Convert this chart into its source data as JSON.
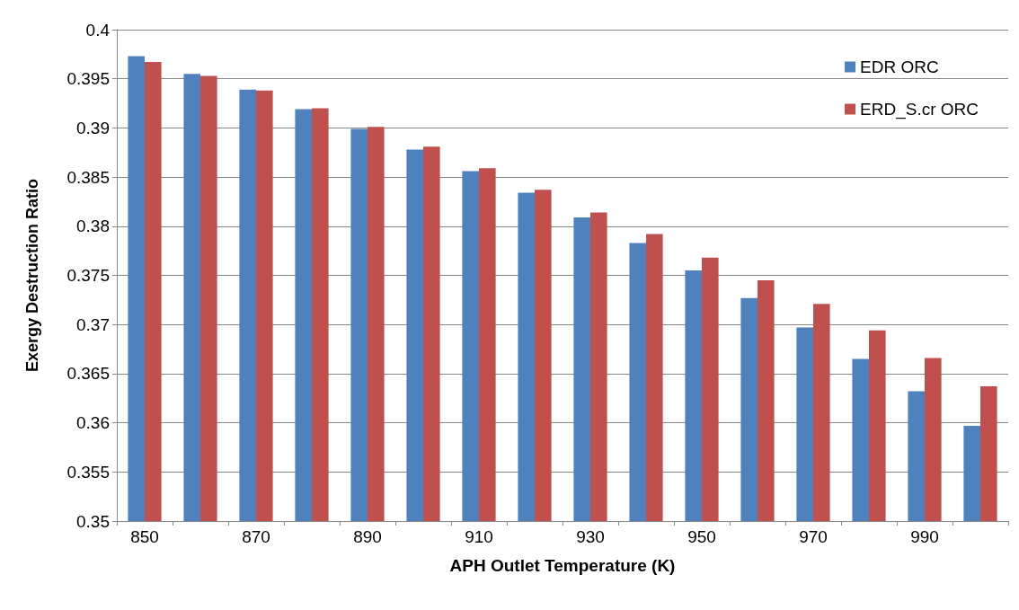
{
  "chart_data": {
    "type": "bar",
    "xlabel": "APH Outlet Temperature (K)",
    "ylabel": "Exergy Destruction Ratio",
    "categories": [
      "850",
      null,
      "870",
      null,
      "890",
      null,
      "910",
      null,
      "930",
      null,
      "950",
      null,
      "970",
      null,
      "990",
      null
    ],
    "series": [
      {
        "name": "EDR ORC",
        "color": "#4f81bd",
        "values": [
          0.3973,
          0.3955,
          0.3939,
          0.3919,
          0.3899,
          0.3878,
          0.3856,
          0.3834,
          0.3809,
          0.3783,
          0.3755,
          0.3727,
          0.3697,
          0.3665,
          0.3632,
          0.3597
        ]
      },
      {
        "name": "ERD_S.cr ORC",
        "color": "#c0504d",
        "values": [
          0.3967,
          0.3953,
          0.3938,
          0.392,
          0.3901,
          0.3881,
          0.3859,
          0.3837,
          0.3814,
          0.3792,
          0.3768,
          0.3745,
          0.3721,
          0.3694,
          0.3666,
          0.3637
        ]
      }
    ],
    "ylim": [
      0.35,
      0.4
    ],
    "yticks": [
      0.35,
      0.355,
      0.36,
      0.365,
      0.37,
      0.375,
      0.38,
      0.385,
      0.39,
      0.395,
      0.4
    ],
    "grid": "y",
    "legend": "top right"
  }
}
